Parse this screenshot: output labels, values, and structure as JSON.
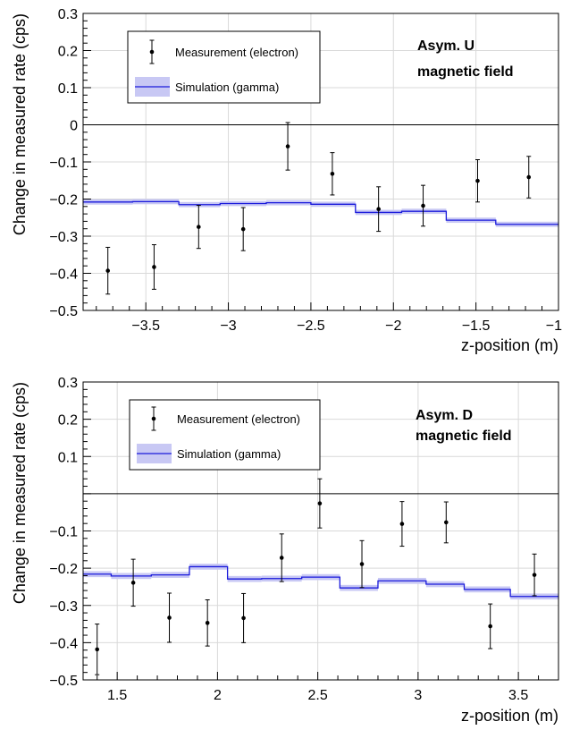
{
  "chart_data": [
    {
      "type": "scatter",
      "xlabel": "z-position (m)",
      "ylabel": "Change in measured rate (cps)",
      "xlim": [
        -3.88,
        -1.0
      ],
      "ylim": [
        -0.5,
        0.3
      ],
      "x_ticks": [
        -3.5,
        -3,
        -2.5,
        -2,
        -1.5,
        -1
      ],
      "x_tick_labels": [
        "−3.5",
        "−3",
        "−2.5",
        "−2",
        "−1.5",
        "−1"
      ],
      "y_ticks": [
        -0.5,
        -0.4,
        -0.3,
        -0.2,
        -0.1,
        0,
        0.1,
        0.2,
        0.3
      ],
      "y_tick_labels": [
        "−0.5",
        "−0.4",
        "−0.3",
        "−0.2",
        "−0.1",
        "0",
        "0.1",
        "0.2",
        "0.3"
      ],
      "grid": true,
      "annotation": [
        "Asym. U",
        "magnetic field"
      ],
      "legend_position": "top-left",
      "reference_line_y": 0,
      "series": [
        {
          "name": "Measurement (electron)",
          "kind": "points-with-errorbars",
          "color": "#000000",
          "x": [
            -3.73,
            -3.45,
            -3.18,
            -2.91,
            -2.64,
            -2.37,
            -2.09,
            -1.82,
            -1.49,
            -1.18
          ],
          "y": [
            -0.393,
            -0.383,
            -0.275,
            -0.281,
            -0.058,
            -0.132,
            -0.227,
            -0.218,
            -0.151,
            -0.141
          ],
          "err": [
            0.063,
            0.06,
            0.058,
            0.058,
            0.064,
            0.057,
            0.06,
            0.055,
            0.057,
            0.056
          ]
        },
        {
          "name": "Simulation (gamma)",
          "kind": "step-with-band",
          "color": "#1a1adb",
          "band_color": "#c8c8f4",
          "bin_edges": [
            -3.88,
            -3.58,
            -3.3,
            -3.05,
            -2.77,
            -2.5,
            -2.23,
            -1.95,
            -1.68,
            -1.38,
            -1.0
          ],
          "y": [
            -0.208,
            -0.207,
            -0.215,
            -0.212,
            -0.21,
            -0.214,
            -0.236,
            -0.233,
            -0.257,
            -0.268
          ],
          "band_halfwidth": 0.007
        }
      ]
    },
    {
      "type": "scatter",
      "xlabel": "z-position (m)",
      "ylabel": "Change in measured rate (cps)",
      "xlim": [
        1.33,
        3.7
      ],
      "ylim": [
        -0.5,
        0.3
      ],
      "x_ticks": [
        1.5,
        2,
        2.5,
        3,
        3.5
      ],
      "x_tick_labels": [
        "1.5",
        "2",
        "2.5",
        "3",
        "3.5"
      ],
      "y_ticks": [
        -0.5,
        -0.4,
        -0.3,
        -0.2,
        -0.1,
        0.1,
        0.2,
        0.3
      ],
      "y_tick_labels": [
        "−0.5",
        "−0.4",
        "−0.3",
        "−0.2",
        "−0.1",
        "0.1",
        "0.2",
        "0.3"
      ],
      "grid": true,
      "annotation": [
        "Asym. D",
        "magnetic field"
      ],
      "legend_position": "top-left",
      "reference_line_y": 0,
      "series": [
        {
          "name": "Measurement (electron)",
          "kind": "points-with-errorbars",
          "color": "#000000",
          "x": [
            1.4,
            1.58,
            1.76,
            1.95,
            2.13,
            2.32,
            2.51,
            2.72,
            2.92,
            3.14,
            3.36,
            3.58
          ],
          "y": [
            -0.418,
            -0.239,
            -0.333,
            -0.347,
            -0.334,
            -0.172,
            -0.026,
            -0.189,
            -0.081,
            -0.077,
            -0.356,
            -0.218
          ],
          "err": [
            0.068,
            0.063,
            0.066,
            0.062,
            0.066,
            0.064,
            0.066,
            0.063,
            0.06,
            0.055,
            0.06,
            0.056
          ]
        },
        {
          "name": "Simulation (gamma)",
          "kind": "step-with-band",
          "color": "#1a1adb",
          "band_color": "#c8c8f4",
          "bin_edges": [
            1.33,
            1.47,
            1.67,
            1.86,
            2.05,
            2.22,
            2.42,
            2.61,
            2.8,
            3.04,
            3.23,
            3.46,
            3.7
          ],
          "y": [
            -0.216,
            -0.221,
            -0.218,
            -0.196,
            -0.229,
            -0.228,
            -0.224,
            -0.253,
            -0.234,
            -0.243,
            -0.257,
            -0.276
          ],
          "band_halfwidth": 0.008
        }
      ]
    }
  ]
}
